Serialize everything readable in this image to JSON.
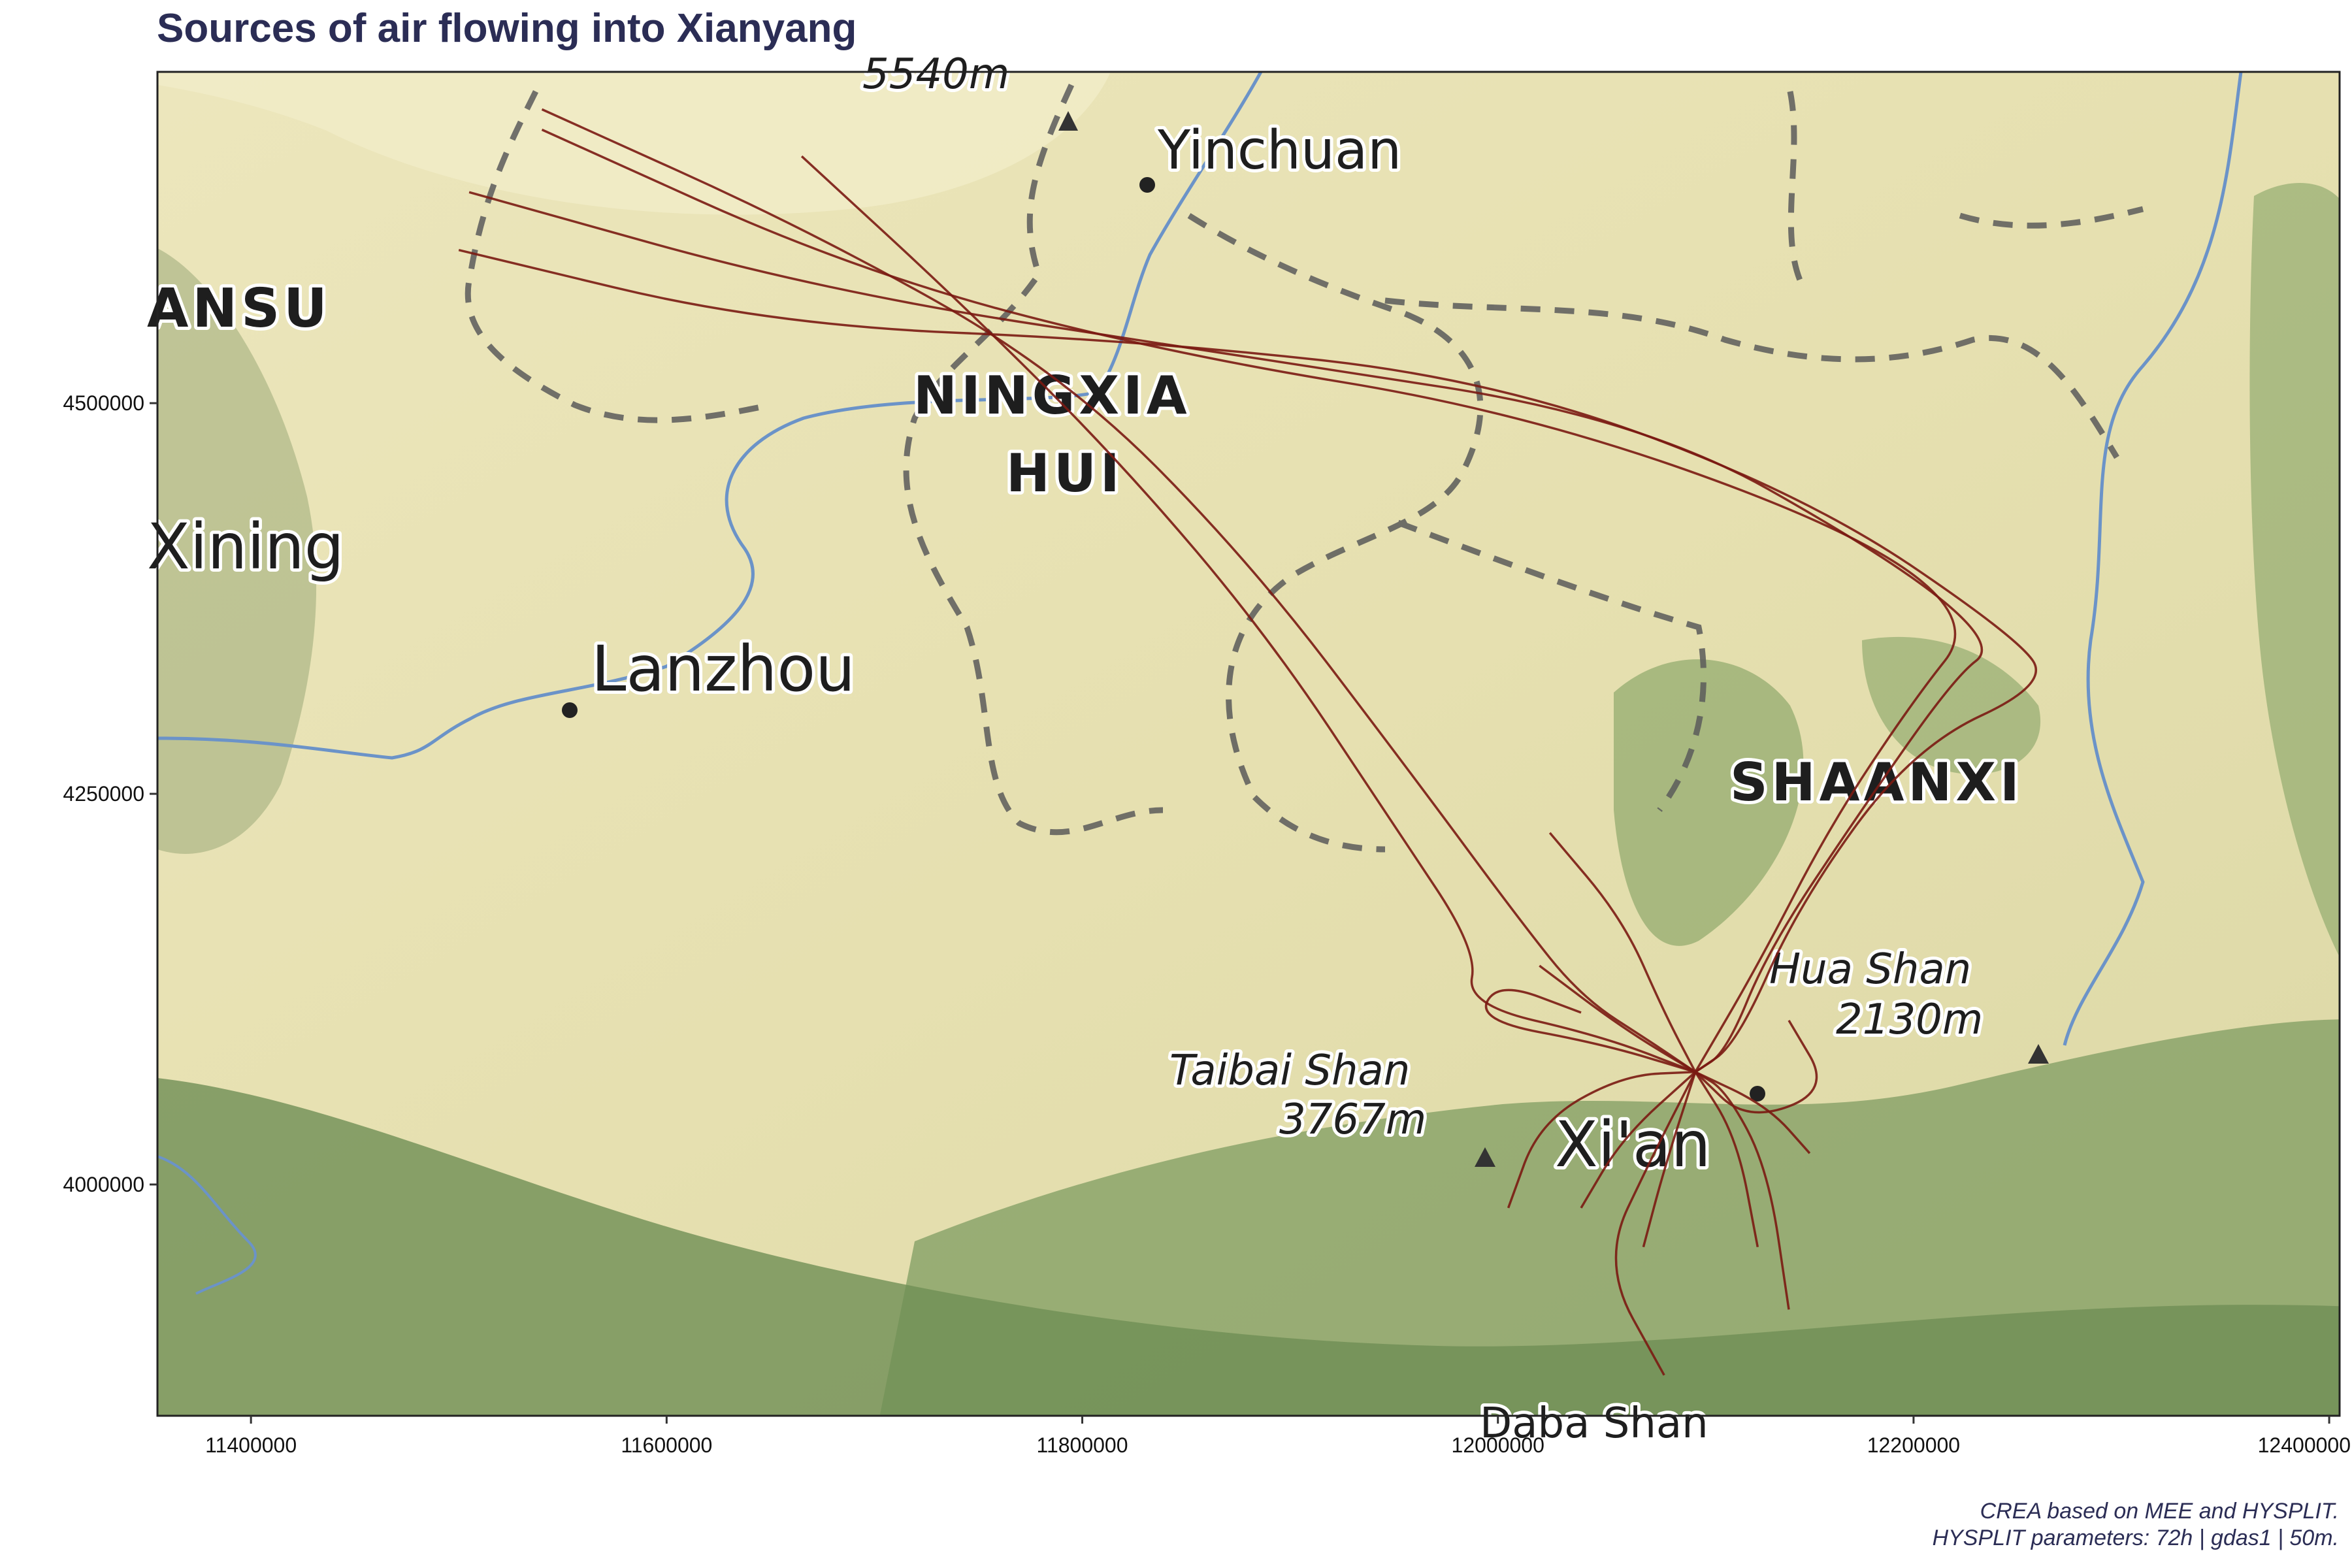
{
  "title": "Sources of air flowing into Xianyang",
  "caption": {
    "line1": "CREA based on MEE and HYSPLIT.",
    "line2": "HYSPLIT parameters: 72h | gdas1 | 50m."
  },
  "colors": {
    "trajectory": "#7a1a12",
    "title": "#2b2d55",
    "map_base": "#e9e3b4",
    "forest": "#7e9a62",
    "river": "#6b93c8",
    "border": "#555555"
  },
  "axes": {
    "x_ticks": [
      "11400000",
      "11600000",
      "11800000",
      "12000000",
      "12200000",
      "12400000"
    ],
    "y_ticks": [
      "4500000",
      "4250000",
      "4000000"
    ]
  },
  "basemap": {
    "labels": {
      "yinchuan": "Yinchuan",
      "gansu": "ANSU",
      "ningxia1": "NINGXIA",
      "ningxia2": "HUI",
      "xining": "Xining",
      "lanzhou": "Lanzhou",
      "shaanxi": "SHAANXI",
      "huashan1": "Hua Shan",
      "huashan2": "2130m",
      "taibai1": "Taibai Shan",
      "taibai2": "3767m",
      "xian": "Xi'an",
      "partial_top": "5540m",
      "partial_bottom": "Daba Shan"
    }
  },
  "chart_data": {
    "type": "map-trajectories",
    "title": "Sources of air flowing into Xianyang",
    "crs_units": "projected metres",
    "xlim": [
      11355000,
      12405000
    ],
    "ylim": [
      3852000,
      4712000
    ],
    "receptor": {
      "name": "Xianyang",
      "x": 12095000,
      "y": 4072000
    },
    "trajectories": [
      {
        "points": [
          [
            11540000,
            4688000
          ],
          [
            11670000,
            4610000
          ],
          [
            11790000,
            4520000
          ],
          [
            11880000,
            4400000
          ],
          [
            11960000,
            4260000
          ],
          [
            12010000,
            4170000
          ],
          [
            12040000,
            4120000
          ],
          [
            12075000,
            4090000
          ],
          [
            12095000,
            4072000
          ]
        ]
      },
      {
        "points": [
          [
            11665000,
            4658000
          ],
          [
            11745000,
            4560000
          ],
          [
            11820000,
            4460000
          ],
          [
            11890000,
            4350000
          ],
          [
            11950000,
            4230000
          ],
          [
            11990000,
            4150000
          ],
          [
            11985000,
            4115000
          ],
          [
            12050000,
            4095000
          ],
          [
            12095000,
            4072000
          ]
        ]
      },
      {
        "points": [
          [
            11505000,
            4635000
          ],
          [
            11680000,
            4570000
          ],
          [
            11880000,
            4530000
          ],
          [
            12070000,
            4490000
          ],
          [
            12190000,
            4400000
          ],
          [
            12240000,
            4345000
          ],
          [
            12220000,
            4325000
          ],
          [
            12175000,
            4240000
          ],
          [
            12130000,
            4150000
          ],
          [
            12110000,
            4085000
          ],
          [
            12095000,
            4072000
          ]
        ]
      },
      {
        "points": [
          [
            11500000,
            4598000
          ],
          [
            11650000,
            4550000
          ],
          [
            11830000,
            4540000
          ],
          [
            12000000,
            4515000
          ],
          [
            12150000,
            4440000
          ],
          [
            12250000,
            4350000
          ],
          [
            12265000,
            4320000
          ],
          [
            12200000,
            4280000
          ],
          [
            12145000,
            4180000
          ],
          [
            12115000,
            4090000
          ],
          [
            12095000,
            4072000
          ]
        ]
      },
      {
        "points": [
          [
            11540000,
            4675000
          ],
          [
            11690000,
            4585000
          ],
          [
            11840000,
            4532000
          ],
          [
            12010000,
            4495000
          ],
          [
            12170000,
            4420000
          ],
          [
            12230000,
            4360000
          ],
          [
            12200000,
            4310000
          ],
          [
            12160000,
            4230000
          ],
          [
            12125000,
            4140000
          ],
          [
            12095000,
            4072000
          ]
        ]
      },
      {
        "points": [
          [
            12025000,
            4225000
          ],
          [
            12060000,
            4170000
          ],
          [
            12080000,
            4110000
          ],
          [
            12095000,
            4072000
          ]
        ]
      },
      {
        "points": [
          [
            12080000,
            3878000
          ],
          [
            12050000,
            3950000
          ],
          [
            12075000,
            4020000
          ],
          [
            12095000,
            4072000
          ]
        ]
      },
      {
        "points": [
          [
            12140000,
            3920000
          ],
          [
            12130000,
            4010000
          ],
          [
            12110000,
            4060000
          ],
          [
            12095000,
            4072000
          ]
        ]
      },
      {
        "points": [
          [
            12005000,
            3985000
          ],
          [
            12020000,
            4040000
          ],
          [
            12060000,
            4070000
          ],
          [
            12095000,
            4072000
          ]
        ]
      },
      {
        "points": [
          [
            12150000,
            4020000
          ],
          [
            12130000,
            4050000
          ],
          [
            12095000,
            4072000
          ]
        ]
      },
      {
        "points": [
          [
            12040000,
            4110000
          ],
          [
            12000000,
            4130000
          ],
          [
            11990000,
            4105000
          ],
          [
            12050000,
            4090000
          ],
          [
            12095000,
            4072000
          ]
        ]
      },
      {
        "points": [
          [
            12140000,
            4105000
          ],
          [
            12160000,
            4060000
          ],
          [
            12120000,
            4040000
          ],
          [
            12095000,
            4072000
          ]
        ]
      },
      {
        "points": [
          [
            12070000,
            3960000
          ],
          [
            12080000,
            4010000
          ],
          [
            12095000,
            4072000
          ]
        ]
      },
      {
        "points": [
          [
            12040000,
            3985000
          ],
          [
            12060000,
            4030000
          ],
          [
            12095000,
            4072000
          ]
        ]
      },
      {
        "points": [
          [
            12125000,
            3960000
          ],
          [
            12115000,
            4030000
          ],
          [
            12095000,
            4072000
          ]
        ]
      },
      {
        "points": [
          [
            12020000,
            4140000
          ],
          [
            12060000,
            4100000
          ],
          [
            12095000,
            4072000
          ]
        ]
      }
    ]
  }
}
